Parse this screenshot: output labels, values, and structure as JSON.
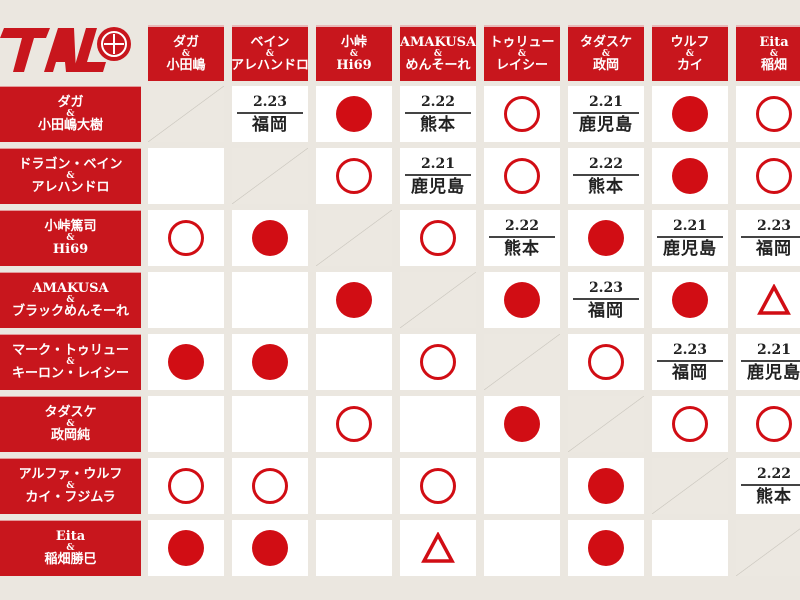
{
  "brand": {
    "logo_text": "TAL",
    "accent": "#c8161d"
  },
  "columns": [
    {
      "a": "ダガ",
      "amp": "&",
      "b": "小田嶋"
    },
    {
      "a": "ベイン",
      "amp": "&",
      "b": "アレハンドロ"
    },
    {
      "a": "小峠",
      "amp": "&",
      "b": "Hi69"
    },
    {
      "a": "AMAKUSA",
      "amp": "&",
      "b": "めんそーれ"
    },
    {
      "a": "トゥリュー",
      "amp": "&",
      "b": "レイシー"
    },
    {
      "a": "タダスケ",
      "amp": "&",
      "b": "政岡"
    },
    {
      "a": "ウルフ",
      "amp": "&",
      "b": "カイ"
    },
    {
      "a": "Eita",
      "amp": "&",
      "b": "稲畑"
    }
  ],
  "rows": [
    {
      "a": "ダガ",
      "amp": "&",
      "b": "小田嶋大樹"
    },
    {
      "a": "ドラゴン・ベイン",
      "amp": "&",
      "b": "アレハンドロ"
    },
    {
      "a": "小峠篤司",
      "amp": "&",
      "b": "Hi69"
    },
    {
      "a": "AMAKUSA",
      "amp": "&",
      "b": "ブラックめんそーれ"
    },
    {
      "a": "マーク・トゥリュー",
      "amp": "&",
      "b": "キーロン・レイシー"
    },
    {
      "a": "タダスケ",
      "amp": "&",
      "b": "政岡純"
    },
    {
      "a": "アルファ・ウルフ",
      "amp": "&",
      "b": "カイ・フジムラ"
    },
    {
      "a": "Eita",
      "amp": "&",
      "b": "稲畑勝巳"
    }
  ],
  "grid": [
    [
      {
        "t": "diag"
      },
      {
        "t": "sched",
        "date": "2.23",
        "place": "福岡"
      },
      {
        "t": "win"
      },
      {
        "t": "sched",
        "date": "2.22",
        "place": "熊本"
      },
      {
        "t": "loss"
      },
      {
        "t": "sched",
        "date": "2.21",
        "place": "鹿児島"
      },
      {
        "t": "win"
      },
      {
        "t": "loss"
      }
    ],
    [
      {
        "t": "empty"
      },
      {
        "t": "diag"
      },
      {
        "t": "loss"
      },
      {
        "t": "sched",
        "date": "2.21",
        "place": "鹿児島"
      },
      {
        "t": "loss"
      },
      {
        "t": "sched",
        "date": "2.22",
        "place": "熊本"
      },
      {
        "t": "win"
      },
      {
        "t": "loss"
      }
    ],
    [
      {
        "t": "loss"
      },
      {
        "t": "win"
      },
      {
        "t": "diag"
      },
      {
        "t": "loss"
      },
      {
        "t": "sched",
        "date": "2.22",
        "place": "熊本"
      },
      {
        "t": "win"
      },
      {
        "t": "sched",
        "date": "2.21",
        "place": "鹿児島"
      },
      {
        "t": "sched",
        "date": "2.23",
        "place": "福岡"
      }
    ],
    [
      {
        "t": "empty"
      },
      {
        "t": "empty"
      },
      {
        "t": "win"
      },
      {
        "t": "diag"
      },
      {
        "t": "win"
      },
      {
        "t": "sched",
        "date": "2.23",
        "place": "福岡"
      },
      {
        "t": "win"
      },
      {
        "t": "draw"
      }
    ],
    [
      {
        "t": "win"
      },
      {
        "t": "win"
      },
      {
        "t": "empty"
      },
      {
        "t": "loss"
      },
      {
        "t": "diag"
      },
      {
        "t": "loss"
      },
      {
        "t": "sched",
        "date": "2.23",
        "place": "福岡"
      },
      {
        "t": "sched",
        "date": "2.21",
        "place": "鹿児島"
      }
    ],
    [
      {
        "t": "empty"
      },
      {
        "t": "empty"
      },
      {
        "t": "loss"
      },
      {
        "t": "empty"
      },
      {
        "t": "win"
      },
      {
        "t": "diag"
      },
      {
        "t": "loss"
      },
      {
        "t": "loss"
      }
    ],
    [
      {
        "t": "loss"
      },
      {
        "t": "loss"
      },
      {
        "t": "empty"
      },
      {
        "t": "loss"
      },
      {
        "t": "empty"
      },
      {
        "t": "win"
      },
      {
        "t": "diag"
      },
      {
        "t": "sched",
        "date": "2.22",
        "place": "熊本"
      }
    ],
    [
      {
        "t": "win"
      },
      {
        "t": "win"
      },
      {
        "t": "empty"
      },
      {
        "t": "draw"
      },
      {
        "t": "empty"
      },
      {
        "t": "win"
      },
      {
        "t": "empty"
      },
      {
        "t": "diag"
      }
    ]
  ],
  "symbols": {
    "win": "filled-circle-icon",
    "loss": "hollow-circle-icon",
    "draw": "triangle-icon"
  }
}
